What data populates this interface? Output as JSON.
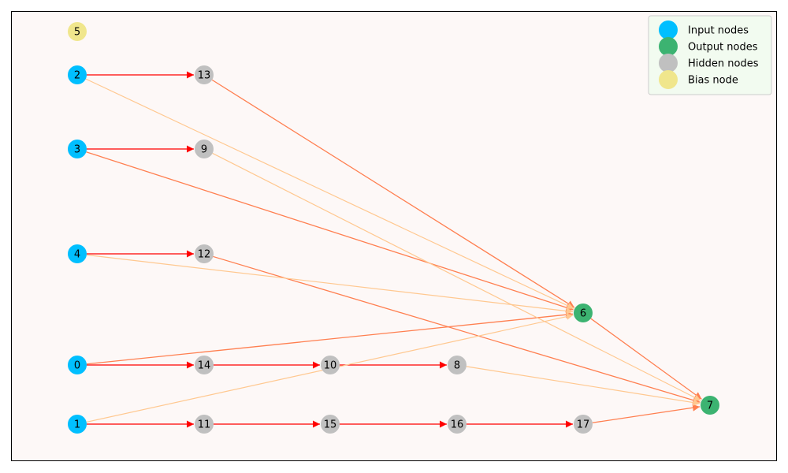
{
  "diagram": {
    "type": "neural-network-graph",
    "colors": {
      "input": "#00bfff",
      "output": "#3cb371",
      "hidden": "#c0c0c0",
      "bias": "#f0e68c",
      "edge_strong": "#ff0000",
      "edge_medium": "#ff7f50",
      "edge_weak": "#ffc890",
      "background": "#fdf8f7",
      "legend_bg": "#f2fbf0"
    },
    "nodes": [
      {
        "id": "5",
        "kind": "bias"
      },
      {
        "id": "2",
        "kind": "input"
      },
      {
        "id": "3",
        "kind": "input"
      },
      {
        "id": "4",
        "kind": "input"
      },
      {
        "id": "0",
        "kind": "input"
      },
      {
        "id": "1",
        "kind": "input"
      },
      {
        "id": "13",
        "kind": "hidden"
      },
      {
        "id": "9",
        "kind": "hidden"
      },
      {
        "id": "12",
        "kind": "hidden"
      },
      {
        "id": "14",
        "kind": "hidden"
      },
      {
        "id": "11",
        "kind": "hidden"
      },
      {
        "id": "10",
        "kind": "hidden"
      },
      {
        "id": "15",
        "kind": "hidden"
      },
      {
        "id": "8",
        "kind": "hidden"
      },
      {
        "id": "16",
        "kind": "hidden"
      },
      {
        "id": "17",
        "kind": "hidden"
      },
      {
        "id": "6",
        "kind": "output"
      },
      {
        "id": "7",
        "kind": "output"
      }
    ],
    "edges": [
      {
        "from": "2",
        "to": "13",
        "strength": "strong"
      },
      {
        "from": "3",
        "to": "9",
        "strength": "strong"
      },
      {
        "from": "4",
        "to": "12",
        "strength": "strong"
      },
      {
        "from": "0",
        "to": "14",
        "strength": "strong"
      },
      {
        "from": "14",
        "to": "10",
        "strength": "strong"
      },
      {
        "from": "10",
        "to": "8",
        "strength": "strong"
      },
      {
        "from": "1",
        "to": "11",
        "strength": "strong"
      },
      {
        "from": "11",
        "to": "15",
        "strength": "strong"
      },
      {
        "from": "15",
        "to": "16",
        "strength": "strong"
      },
      {
        "from": "16",
        "to": "17",
        "strength": "strong"
      },
      {
        "from": "13",
        "to": "6",
        "strength": "medium"
      },
      {
        "from": "3",
        "to": "6",
        "strength": "medium"
      },
      {
        "from": "0",
        "to": "6",
        "strength": "medium"
      },
      {
        "from": "6",
        "to": "7",
        "strength": "medium"
      },
      {
        "from": "12",
        "to": "7",
        "strength": "medium"
      },
      {
        "from": "17",
        "to": "7",
        "strength": "medium"
      },
      {
        "from": "2",
        "to": "6",
        "strength": "weak"
      },
      {
        "from": "4",
        "to": "6",
        "strength": "weak"
      },
      {
        "from": "1",
        "to": "6",
        "strength": "weak"
      },
      {
        "from": "9",
        "to": "7",
        "strength": "weak"
      },
      {
        "from": "8",
        "to": "7",
        "strength": "weak"
      }
    ],
    "legend": [
      {
        "label": "Input nodes",
        "kind": "input"
      },
      {
        "label": "Output nodes",
        "kind": "output"
      },
      {
        "label": "Hidden nodes",
        "kind": "hidden"
      },
      {
        "label": "Bias node",
        "kind": "bias"
      }
    ]
  }
}
